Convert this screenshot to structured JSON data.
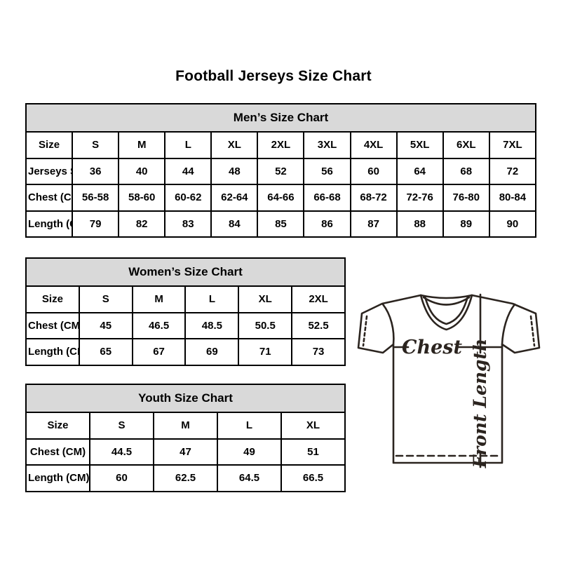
{
  "page": {
    "title": "Football Jerseys Size Chart"
  },
  "tables": {
    "mens": {
      "title": "Men’s Size Chart",
      "rows": [
        [
          "Size",
          "S",
          "M",
          "L",
          "XL",
          "2XL",
          "3XL",
          "4XL",
          "5XL",
          "6XL",
          "7XL"
        ],
        [
          "Jerseys Size",
          "36",
          "40",
          "44",
          "48",
          "52",
          "56",
          "60",
          "64",
          "68",
          "72"
        ],
        [
          "Chest (CM)",
          "56-58",
          "58-60",
          "60-62",
          "62-64",
          "64-66",
          "66-68",
          "68-72",
          "72-76",
          "76-80",
          "80-84"
        ],
        [
          "Length (CM)",
          "79",
          "82",
          "83",
          "84",
          "85",
          "86",
          "87",
          "88",
          "89",
          "90"
        ]
      ]
    },
    "womens": {
      "title": "Women’s Size Chart",
      "rows": [
        [
          "Size",
          "S",
          "M",
          "L",
          "XL",
          "2XL"
        ],
        [
          "Chest (CM)",
          "45",
          "46.5",
          "48.5",
          "50.5",
          "52.5"
        ],
        [
          "Length (CM)",
          "65",
          "67",
          "69",
          "71",
          "73"
        ]
      ]
    },
    "youth": {
      "title": "Youth Size Chart",
      "rows": [
        [
          "Size",
          "S",
          "M",
          "L",
          "XL"
        ],
        [
          "Chest (CM)",
          "44.5",
          "47",
          "49",
          "51"
        ],
        [
          "Length (CM)",
          "60",
          "62.5",
          "64.5",
          "66.5"
        ]
      ]
    }
  },
  "diagram": {
    "chest_label": "Chest",
    "front_length_label": "Front Length"
  },
  "colors": {
    "header_bg": "#d9d9d9",
    "table_border": "#000000",
    "text": "#000000",
    "diagram_ink": "#2b241f",
    "background": "#ffffff"
  }
}
